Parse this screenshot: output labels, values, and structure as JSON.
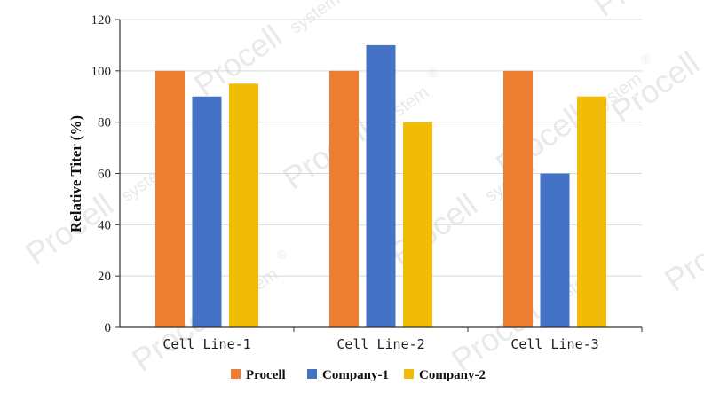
{
  "watermark": {
    "brand": "Procell",
    "sub": "system",
    "mark": "®"
  },
  "chart_data": {
    "type": "bar",
    "title": "",
    "xlabel": "",
    "ylabel": "Relative Titer (%)",
    "ylim": [
      0,
      120
    ],
    "yticks": [
      0,
      20,
      40,
      60,
      80,
      100,
      120
    ],
    "grid": true,
    "legend_position": "bottom",
    "categories": [
      "Cell Line-1",
      "Cell Line-2",
      "Cell Line-3"
    ],
    "series": [
      {
        "name": "Procell",
        "color": "#ED7D31",
        "values": [
          100,
          100,
          100
        ]
      },
      {
        "name": "Company-1",
        "color": "#4472C4",
        "values": [
          90,
          110,
          60
        ]
      },
      {
        "name": "Company-2",
        "color": "#F2BB05",
        "values": [
          95,
          80,
          90
        ]
      }
    ]
  }
}
